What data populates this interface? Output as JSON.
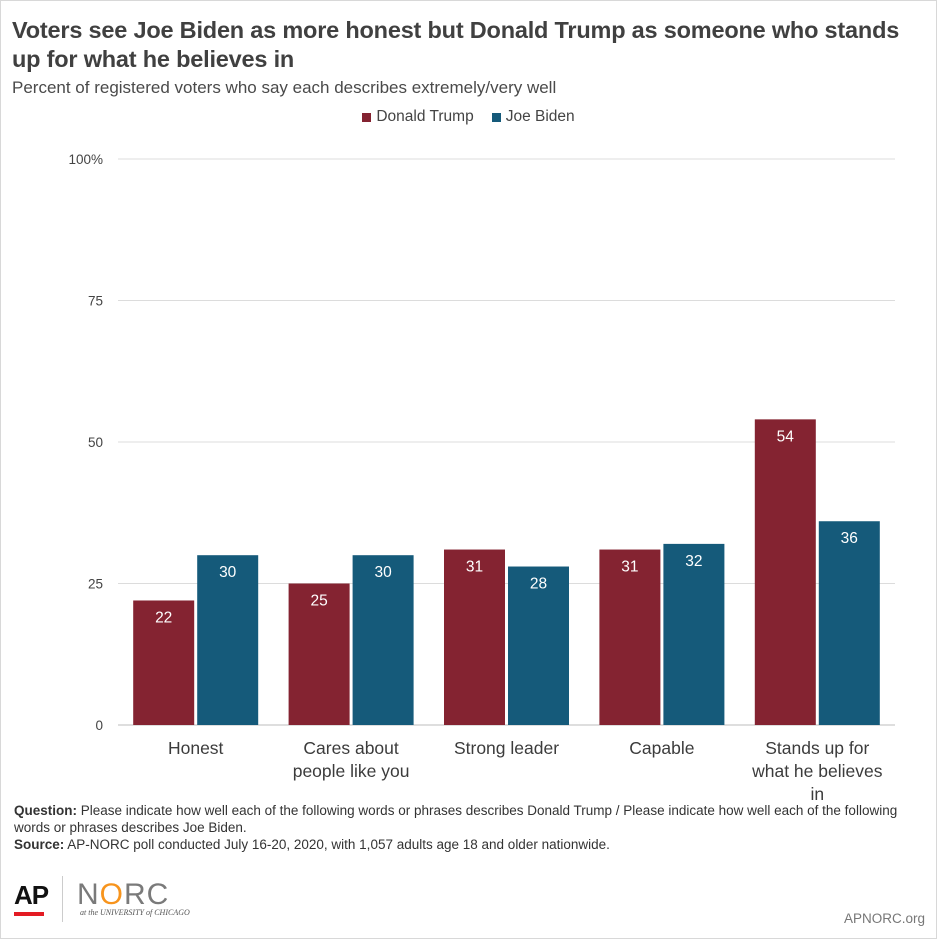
{
  "chart_data": {
    "type": "bar",
    "title": "Voters see Joe Biden as more honest but Donald Trump as someone who stands up for what he believes in",
    "subtitle": "Percent of registered voters who say each describes extremely/very well",
    "categories": [
      "Honest",
      "Cares about people like you",
      "Strong leader",
      "Capable",
      "Stands up for what he believes in"
    ],
    "category_lines": [
      [
        "Honest"
      ],
      [
        "Cares about",
        "people like you"
      ],
      [
        "Strong leader"
      ],
      [
        "Capable"
      ],
      [
        "Stands up for",
        "what he believes",
        "in"
      ]
    ],
    "series": [
      {
        "name": "Donald Trump",
        "color": "#842331",
        "values": [
          22,
          25,
          31,
          31,
          54
        ]
      },
      {
        "name": "Joe Biden",
        "color": "#155a7a",
        "values": [
          30,
          30,
          28,
          32,
          36
        ]
      }
    ],
    "yticks": [
      0,
      25,
      50,
      75,
      100
    ],
    "ytick_labels": [
      "0",
      "25",
      "50",
      "75",
      "100%"
    ],
    "ylim": [
      0,
      100
    ],
    "grid": true,
    "legend_position": "top-center"
  },
  "notes": {
    "question_label": "Question:",
    "question_text": "Please indicate how well each of the following words or phrases describes Donald Trump / Please indicate how well each of the following words or phrases describes Joe Biden.",
    "source_label": "Source:",
    "source_text": "AP-NORC poll conducted July 16-20, 2020, with 1,057 adults age 18 and older nationwide."
  },
  "footer": {
    "ap_logo": "AP",
    "norc_logo_left": "N",
    "norc_logo_o": "O",
    "norc_logo_right": "RC",
    "norc_sub": "at the UNIVERSITY of CHICAGO",
    "site": "APNORC.org"
  }
}
